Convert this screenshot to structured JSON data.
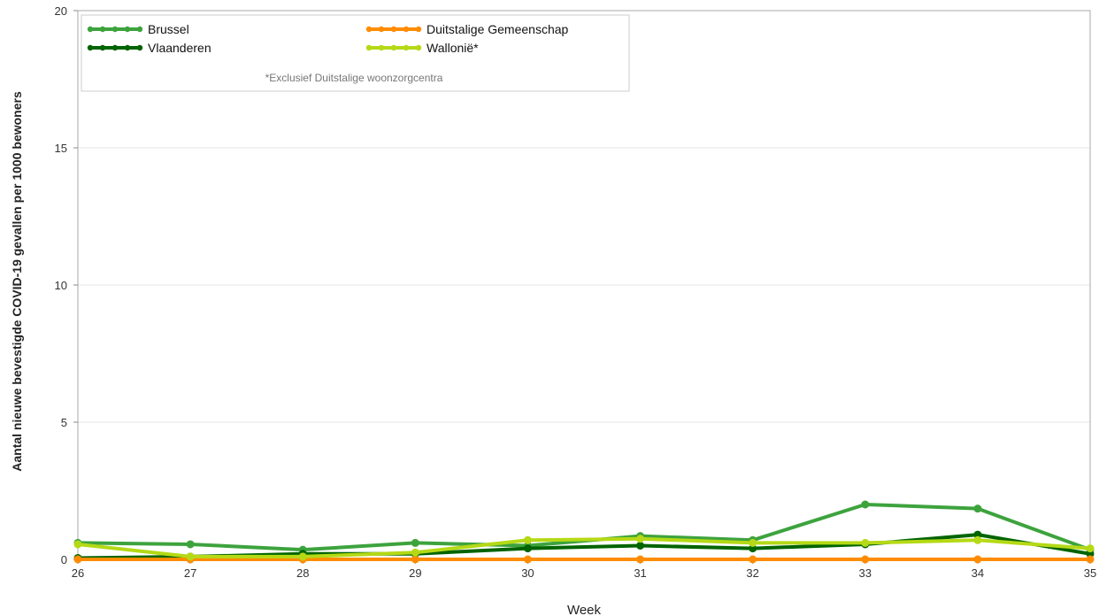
{
  "chart_data": {
    "type": "line",
    "xlabel": "Week",
    "ylabel": "Aantal nieuwe bevestigde COVID-19 gevallen per 1000 bewoners",
    "x": [
      26,
      27,
      28,
      29,
      30,
      31,
      32,
      33,
      34,
      35
    ],
    "xlim": [
      26,
      35
    ],
    "ylim": [
      0,
      20
    ],
    "yticks": [
      0,
      5,
      10,
      15,
      20
    ],
    "grid": true,
    "legend_position": "top-left",
    "legend_note": "*Exclusief Duitstalige woonzorgcentra",
    "series": [
      {
        "name": "Brussel",
        "color": "#3da33d",
        "values": [
          0.6,
          0.55,
          0.35,
          0.6,
          0.5,
          0.85,
          0.7,
          2.0,
          1.85,
          0.35
        ]
      },
      {
        "name": "Vlaanderen",
        "color": "#006400",
        "values": [
          0.05,
          0.1,
          0.2,
          0.2,
          0.4,
          0.5,
          0.4,
          0.55,
          0.9,
          0.2
        ]
      },
      {
        "name": "Duitstalige Gemeenschap",
        "color": "#ff8c00",
        "values": [
          0,
          0,
          0,
          0,
          0,
          0,
          0,
          0,
          0,
          0
        ]
      },
      {
        "name": "Wallonië*",
        "color": "#b5d916",
        "values": [
          0.55,
          0.1,
          0.1,
          0.25,
          0.7,
          0.75,
          0.6,
          0.6,
          0.7,
          0.4
        ]
      }
    ]
  }
}
